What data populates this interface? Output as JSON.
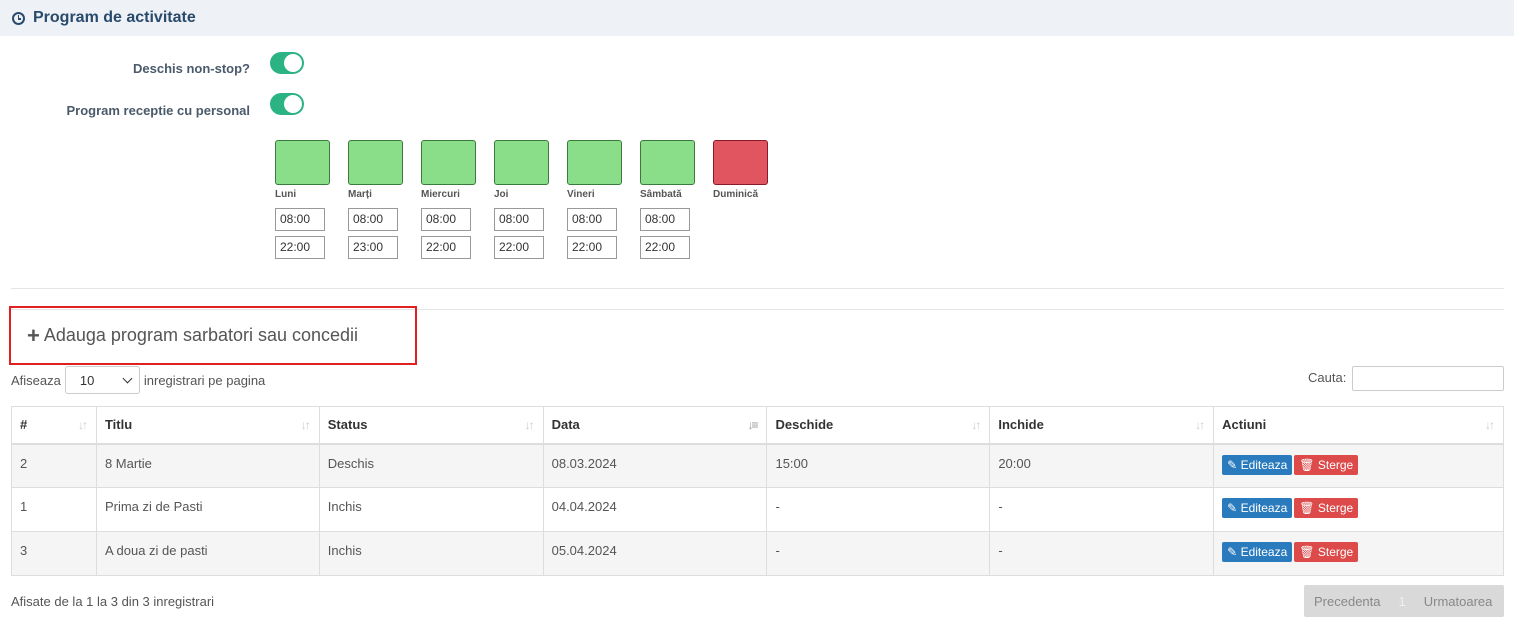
{
  "header": {
    "title": "Program de activitate",
    "icon": "clock-icon"
  },
  "settings": {
    "nonstop_label": "Deschis non-stop?",
    "reception_label": "Program receptie cu personal"
  },
  "days": [
    {
      "name": "Luni",
      "open": "08:00",
      "close": "22:00",
      "status": "open"
    },
    {
      "name": "Marți",
      "open": "08:00",
      "close": "23:00",
      "status": "open"
    },
    {
      "name": "Miercuri",
      "open": "08:00",
      "close": "22:00",
      "status": "open"
    },
    {
      "name": "Joi",
      "open": "08:00",
      "close": "22:00",
      "status": "open"
    },
    {
      "name": "Vineri",
      "open": "08:00",
      "close": "22:00",
      "status": "open"
    },
    {
      "name": "Sâmbată",
      "open": "08:00",
      "close": "22:00",
      "status": "open"
    },
    {
      "name": "Duminică",
      "open": "",
      "close": "",
      "status": "closed"
    }
  ],
  "colors": {
    "open_day": "#8ade8a",
    "closed_day": "#e05560",
    "toggle_on": "#2bb383",
    "edit_button": "#2a7bbd",
    "delete_button": "#dc4a4a"
  },
  "add_holiday": {
    "icon": "plus-icon",
    "label": "Adauga program sarbatori sau concedii"
  },
  "table_controls": {
    "show_label": "Afiseaza",
    "page_size": "10",
    "per_page_label": "inregistrari pe pagina",
    "search_label": "Cauta:"
  },
  "table": {
    "columns": [
      "#",
      "Titlu",
      "Status",
      "Data",
      "Deschide",
      "Inchide",
      "Actiuni"
    ],
    "rows": [
      {
        "id": "2",
        "title": "8 Martie",
        "status": "Deschis",
        "date": "08.03.2024",
        "opens": "15:00",
        "closes": "20:00"
      },
      {
        "id": "1",
        "title": "Prima zi de Pasti",
        "status": "Inchis",
        "date": "04.04.2024",
        "opens": "-",
        "closes": "-"
      },
      {
        "id": "3",
        "title": "A doua zi de pasti",
        "status": "Inchis",
        "date": "05.04.2024",
        "opens": "-",
        "closes": "-"
      }
    ],
    "edit_label": "Editeaza",
    "delete_label": "Sterge"
  },
  "footer": {
    "info": "Afisate de la 1 la 3 din 3 inregistrari",
    "prev": "Precedenta",
    "page": "1",
    "next": "Urmatoarea"
  }
}
